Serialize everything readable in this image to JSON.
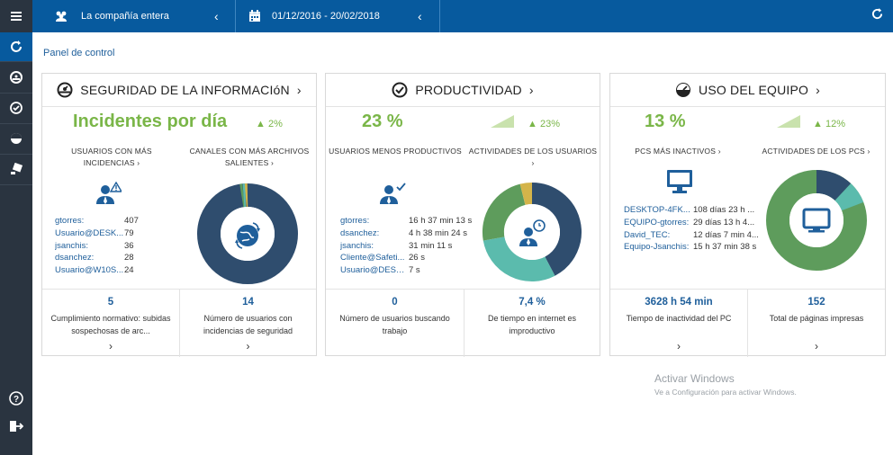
{
  "rail": {
    "items": [
      {
        "name": "menu-icon",
        "glyph": "≡"
      },
      {
        "name": "refresh-status-icon",
        "glyph": "↻"
      },
      {
        "name": "security-icon",
        "glyph": "◐"
      },
      {
        "name": "productivity-icon",
        "glyph": "✓"
      },
      {
        "name": "equipment-icon",
        "glyph": "◑"
      },
      {
        "name": "eraser-icon",
        "glyph": "◩"
      },
      {
        "name": "help-icon",
        "glyph": "?"
      },
      {
        "name": "logout-icon",
        "glyph": "⇥"
      }
    ]
  },
  "topbar": {
    "company": "La compañía entera",
    "date_range": "01/12/2016 - 20/02/2018"
  },
  "breadcrumb": "Panel de control",
  "colors": {
    "accent": "#075a9e",
    "green": "#7ab648",
    "navy": "#2f4d6e",
    "teal": "#5bbbad",
    "donut_green": "#5e9c5c",
    "yellow": "#d4b44a",
    "link": "#1f5f9b"
  },
  "security": {
    "title": "SEGURIDAD DE LA INFORMACIóN",
    "headline": "Incidentes por día",
    "trend": "2%",
    "sub_left": "USUARIOS CON MÁS INCIDENCIAS",
    "sub_right": "CANALES CON MÁS ARCHIVOS SALIENTES",
    "users": [
      {
        "name": "gtorres:",
        "value": "407"
      },
      {
        "name": "Usuario@DESK...",
        "value": "79"
      },
      {
        "name": "jsanchis:",
        "value": "36"
      },
      {
        "name": "dsanchez:",
        "value": "28"
      },
      {
        "name": "Usuario@W10S...",
        "value": "24"
      }
    ],
    "metric_left_value": "5",
    "metric_left_label": "Cumplimiento normativo: subidas sospechosas de arc...",
    "metric_right_value": "14",
    "metric_right_label": "Número de usuarios con incidencias de seguridad"
  },
  "productivity": {
    "title": "PRODUCTIVIDAD",
    "headline": "23 %",
    "trend": "23%",
    "sub_left": "USUARIOS MENOS PRODUCTIVOS",
    "sub_right": "ACTIVIDADES DE LOS USUARIOS",
    "users": [
      {
        "name": "gtorres:",
        "value": "16 h 37 min 13 s"
      },
      {
        "name": "dsanchez:",
        "value": "4 h 38 min 24 s"
      },
      {
        "name": "jsanchis:",
        "value": "31 min 11 s"
      },
      {
        "name": "Cliente@Safeti...",
        "value": "26 s"
      },
      {
        "name": "Usuario@DESK...",
        "value": "7 s"
      }
    ],
    "metric_left_value": "0",
    "metric_left_label": "Número de usuarios buscando trabajo",
    "metric_right_value": "7,4 %",
    "metric_right_label": "De tiempo en internet es improductivo"
  },
  "equipment": {
    "title": "USO DEL EQUIPO",
    "headline": "13 %",
    "trend": "12%",
    "sub_left": "PCS MÁS INACTIVOS",
    "sub_right": "ACTIVIDADES DE LOS PCS",
    "pcs": [
      {
        "name": "DESKTOP-4FK...",
        "value": "108 días 23 h ..."
      },
      {
        "name": "EQUIPO-gtorres:",
        "value": "29 días 13 h 4..."
      },
      {
        "name": "David_TEC:",
        "value": "12 días 7 min 4..."
      },
      {
        "name": "Equipo-Jsanchis:",
        "value": "15 h 37 min 38 s"
      }
    ],
    "metric_left_value": "3628 h 54 min",
    "metric_left_label": "Tiempo de inactividad del PC",
    "metric_right_value": "152",
    "metric_right_label": "Total de páginas impresas"
  },
  "watermark": {
    "line1": "Activar Windows",
    "line2": "Ve a Configuración para activar Windows."
  }
}
